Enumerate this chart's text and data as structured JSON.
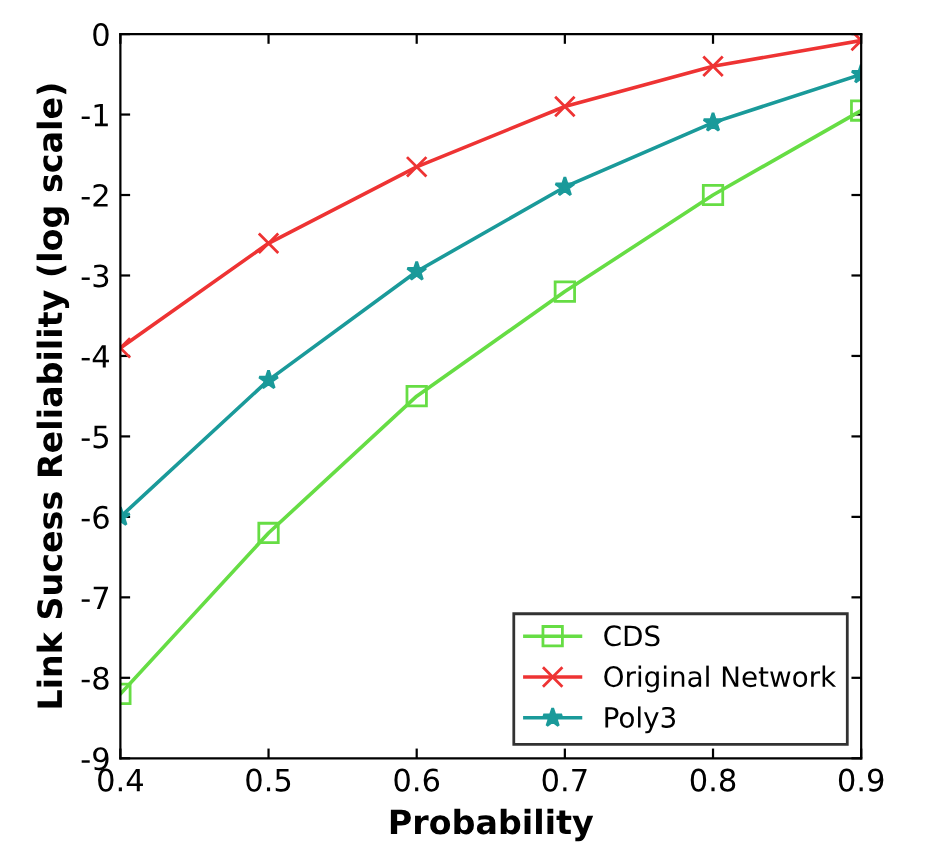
{
  "chart_data": {
    "type": "line",
    "xlabel": "Probability",
    "ylabel": "Link Sucess Reliability (log scale)",
    "x": [
      0.4,
      0.5,
      0.6,
      0.7,
      0.8,
      0.9
    ],
    "series": [
      {
        "name": "CDS",
        "color": "#66dd44",
        "marker": "square",
        "values": [
          -8.2,
          -6.2,
          -4.5,
          -3.2,
          -2.0,
          -0.95
        ]
      },
      {
        "name": "Original Network",
        "color": "#ee3333",
        "marker": "cross",
        "values": [
          -3.9,
          -2.6,
          -1.65,
          -0.9,
          -0.4,
          -0.08
        ]
      },
      {
        "name": "Poly3",
        "color": "#1a9a9a",
        "marker": "star",
        "values": [
          -6.0,
          -4.3,
          -2.95,
          -1.9,
          -1.1,
          -0.5
        ]
      }
    ],
    "xlim": [
      0.4,
      0.9
    ],
    "xticks": [
      0.4,
      0.5,
      0.6,
      0.7,
      0.8,
      0.9
    ],
    "ylim": [
      -9,
      0
    ],
    "yticks": [
      -9,
      -8,
      -7,
      -6,
      -5,
      -4,
      -3,
      -2,
      -1,
      0
    ],
    "grid": false,
    "legend": "bottom right",
    "line_style": "solid"
  }
}
